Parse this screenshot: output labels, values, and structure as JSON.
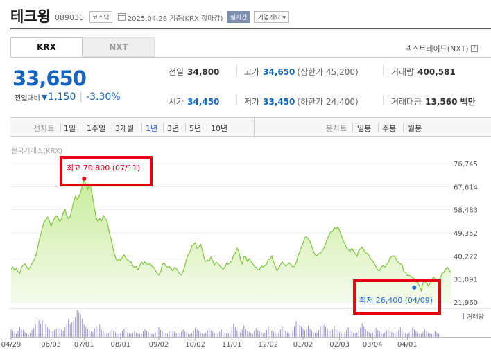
{
  "stock": {
    "name": "테크윙",
    "code": "089030",
    "market_badge": "코스닥",
    "date_text": "2025.04.28 기준(KRX 장마감)",
    "realtime_badge": "실시간",
    "company_info_button": "기업개요"
  },
  "exchange_tabs": [
    "KRX",
    "NXT"
  ],
  "nxt_link": "넥스트레이드(NXT)",
  "help_icon": "?",
  "price": {
    "current": "33,650",
    "change_label": "전일대비",
    "change": "1,150",
    "change_pct": "-3.30%",
    "direction_icon": "down-triangle-icon"
  },
  "stats": {
    "prev_close": {
      "label": "전일",
      "value": "34,800"
    },
    "high": {
      "label": "고가",
      "value": "34,650",
      "sub": "(상한가 45,200)"
    },
    "volume": {
      "label": "거래량",
      "value": "400,581"
    },
    "open": {
      "label": "시가",
      "value": "34,450"
    },
    "low": {
      "label": "저가",
      "value": "33,450",
      "sub": "(하한가 24,400)"
    },
    "amount": {
      "label": "거래대금",
      "value": "13,560 백만"
    }
  },
  "period_bar": {
    "line_label": "선차트",
    "line_periods": [
      "1일",
      "1주일",
      "3개월",
      "1년",
      "3년",
      "5년",
      "10년"
    ],
    "selected_period": "1년",
    "candle_label": "봉차트",
    "candle_periods": [
      "일봉",
      "주봉",
      "월봉"
    ]
  },
  "chart_source": "한국거래소(KRX)",
  "chart_data": {
    "type": "area",
    "y_ticks": [
      "76,745",
      "67,614",
      "58,483",
      "49,352",
      "40,222",
      "31,091",
      "21,960"
    ],
    "ylim": [
      21960,
      76745
    ],
    "x_ticks": [
      "04/29",
      "06/03",
      "07/01",
      "08/01",
      "09/02",
      "10/02",
      "11/01",
      "12/02",
      "01/02",
      "02/03",
      "03/04",
      "04/01"
    ],
    "x_tick_index": [
      0,
      23,
      42,
      63,
      85,
      106,
      127,
      148,
      168,
      189,
      208,
      228
    ],
    "series": [
      {
        "values": [
          35000,
          35800,
          34600,
          35400,
          34000,
          33300,
          35800,
          36600,
          37100,
          35900,
          34900,
          35800,
          37300,
          38400,
          40000,
          42500,
          45800,
          48600,
          51400,
          53700,
          54500,
          55600,
          54200,
          52000,
          53700,
          55200,
          56100,
          55400,
          53700,
          54900,
          57400,
          58600,
          56200,
          54900,
          55700,
          58700,
          61700,
          63800,
          62700,
          63800,
          65300,
          68000,
          70800,
          68500,
          66500,
          68800,
          67000,
          63000,
          58700,
          55300,
          53800,
          55000,
          54100,
          56200,
          55200,
          54300,
          51200,
          48200,
          45500,
          42100,
          39700,
          38400,
          39000,
          38500,
          39800,
          40700,
          39400,
          38700,
          38200,
          37900,
          36400,
          35600,
          36100,
          34800,
          36200,
          37800,
          37000,
          37900,
          37000,
          36900,
          37200,
          36200,
          35800,
          34600,
          33400,
          32700,
          33900,
          36700,
          37600,
          36400,
          35800,
          36100,
          35300,
          34300,
          35600,
          35300,
          34200,
          33100,
          32700,
          34300,
          36400,
          39200,
          40800,
          41900,
          44200,
          44800,
          45500,
          43200,
          43700,
          44900,
          42700,
          39400,
          38100,
          38600,
          38300,
          39800,
          38200,
          36600,
          37700,
          37300,
          36400,
          35700,
          35000,
          35800,
          37400,
          37000,
          37600,
          38300,
          40600,
          41100,
          43300,
          42000,
          38700,
          37200,
          40100,
          39900,
          38100,
          39200,
          38000,
          37200,
          36200,
          35700,
          34700,
          34900,
          36400,
          35800,
          36400,
          36900,
          39000,
          38900,
          40200,
          37900,
          36200,
          34400,
          35400,
          36700,
          37900,
          37100,
          36200,
          36700,
          37500,
          36800,
          35900,
          36100,
          37500,
          40100,
          41800,
          43800,
          45300,
          47500,
          47800,
          46800,
          46000,
          44100,
          42000,
          40700,
          40300,
          41100,
          41300,
          42200,
          43400,
          45100,
          47000,
          48600,
          49700,
          49900,
          51400,
          50800,
          51700,
          50300,
          48400,
          46400,
          45200,
          43400,
          42800,
          41900,
          43200,
          42200,
          41200,
          40000,
          42300,
          43100,
          43700,
          42400,
          41400,
          41300,
          40400,
          39000,
          38400,
          37200,
          36000,
          34600,
          34500,
          35900,
          36400,
          35700,
          36800,
          37600,
          39500,
          40100,
          40300,
          39800,
          38400,
          37600,
          37100,
          36700,
          33900,
          33800,
          32500,
          32600,
          32200,
          31600,
          31300,
          30000,
          29700,
          28300,
          26400,
          29600,
          30100,
          29700,
          28400,
          29300,
          30600,
          31900,
          31200,
          30900,
          30600,
          31600,
          33400,
          33700,
          35000,
          35800,
          34800,
          33650
        ]
      }
    ],
    "high_annotation": "최고 70,800 (07/11)",
    "high_index": 42,
    "low_annotation": "최저 26,400 (04/09)",
    "low_index": 232,
    "volume_label": "거래량",
    "volume": [
      5.8,
      4.6,
      3.5,
      2.4,
      4.3,
      7.3,
      5.7,
      5.0,
      3.7,
      2.6,
      1.8,
      3.3,
      5.2,
      6.7,
      9.4,
      14.7,
      12.5,
      10.0,
      12.5,
      12.0,
      9.5,
      7.0,
      5.9,
      5.0,
      4.1,
      5.1,
      6.4,
      7.3,
      6.8,
      5.5,
      4.6,
      7.2,
      9.9,
      13.2,
      9.9,
      11.6,
      12.2,
      15.0,
      20.0,
      18.8,
      16.9,
      13.7,
      9.6,
      7.3,
      6.2,
      5.0,
      4.0,
      3.7,
      6.4,
      8.3,
      7.5,
      9.4,
      5.6,
      4.1,
      3.5,
      2.4,
      2.8,
      4.2,
      6.5,
      4.8,
      3.6,
      2.3,
      2.6,
      3.4,
      4.8,
      6.4,
      4.5,
      3.6,
      3.0,
      2.5,
      3.3,
      4.7,
      3.5,
      2.5,
      2.2,
      3.1,
      4.2,
      6.0,
      4.7,
      3.7,
      3.0,
      2.4,
      1.9,
      3.4,
      5.3,
      7.2,
      5.5,
      4.5,
      3.7,
      3.0,
      2.6,
      4.3,
      6.0,
      4.7,
      3.9,
      3.2,
      2.8,
      2.4,
      4.0,
      5.6,
      4.3,
      3.4,
      2.4,
      2.0,
      3.2,
      4.8,
      7.0,
      5.7,
      4.6,
      3.6,
      2.7,
      2.1,
      3.3,
      5.1,
      7.0,
      5.2,
      4.0,
      3.2,
      2.4,
      2.8,
      4.1,
      5.7,
      4.4,
      3.3,
      2.7,
      3.1,
      4.5,
      7.3,
      10.2,
      7.3,
      5.0,
      3.7,
      3.4,
      5.7,
      8.8,
      6.0,
      4.5,
      3.7,
      3.2,
      2.5,
      4.4,
      6.7,
      5.1,
      4.2,
      3.4,
      2.5,
      3.3,
      5.3,
      7.7,
      6.1,
      4.9,
      3.9,
      3.3,
      2.9,
      3.4,
      5.6,
      7.9,
      5.9,
      4.6,
      3.6,
      2.9,
      3.2,
      5.2,
      7.7,
      12.0,
      9.8,
      8.8,
      7.7,
      6.3,
      5.0,
      5.7,
      8.2,
      6.0,
      4.8,
      3.5,
      2.9,
      3.5,
      5.3,
      7.9,
      11.4,
      8.8,
      7.6,
      6.5,
      5.2,
      4.3,
      5.7,
      8.1,
      6.0,
      4.8,
      3.8,
      3.2,
      2.4,
      3.6,
      5.2,
      7.2,
      5.4,
      4.2,
      3.2,
      2.7,
      3.5,
      5.0,
      7.0,
      10.4,
      7.6,
      5.9,
      4.6,
      3.6,
      2.8,
      3.6,
      5.3,
      7.0,
      5.2,
      4.1,
      3.3,
      2.4,
      3.6,
      4.9,
      6.3,
      4.8,
      3.7,
      2.8,
      2.6,
      3.9,
      5.2,
      7.3,
      5.3,
      4.1,
      3.2,
      2.3,
      3.6,
      5.4,
      7.6,
      5.8,
      4.7,
      3.6,
      2.5,
      2.4,
      3.7,
      6.0,
      4.5,
      3.4,
      2.6,
      2.1,
      2.9,
      4.2,
      3.2,
      2.4
    ]
  },
  "colors": {
    "price_down": "#1565c0",
    "line": "#7dc63a",
    "high_marker": "#e0001b",
    "low_marker": "#1e6fd9",
    "highlight_box": "#e60012",
    "volume_bar": "#9b8fcf"
  }
}
